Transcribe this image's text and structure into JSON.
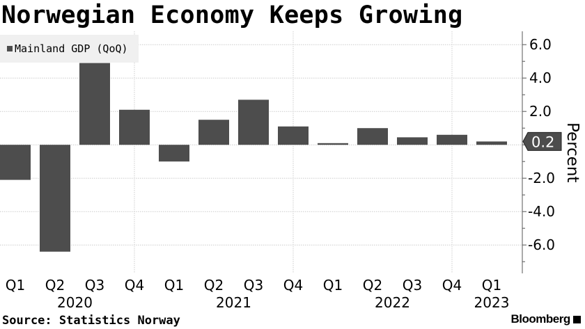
{
  "title": "Norwegian Economy Keeps Growing",
  "source": "Source: Statistics Norway",
  "logo": "Bloomberg",
  "chart_data": {
    "type": "bar",
    "categories": [
      "Q1 2020",
      "Q2 2020",
      "Q3 2020",
      "Q4 2020",
      "Q1 2021",
      "Q2 2021",
      "Q3 2021",
      "Q4 2021",
      "Q1 2022",
      "Q2 2022",
      "Q3 2022",
      "Q4 2022",
      "Q1 2023"
    ],
    "quarter_labels": [
      "Q1",
      "Q2",
      "Q3",
      "Q4",
      "Q1",
      "Q2",
      "Q3",
      "Q4",
      "Q1",
      "Q2",
      "Q3",
      "Q4",
      "Q1"
    ],
    "year_labels": [
      {
        "label": "2020",
        "index": 1.5
      },
      {
        "label": "2021",
        "index": 5.5
      },
      {
        "label": "2022",
        "index": 9.5
      },
      {
        "label": "2023",
        "index": 12
      }
    ],
    "series": [
      {
        "name": "Mainland GDP (QoQ)",
        "values": [
          -2.1,
          -6.4,
          4.9,
          2.1,
          -1.0,
          1.5,
          2.7,
          1.1,
          0.1,
          1.0,
          0.45,
          0.6,
          0.2
        ],
        "color": "#4d4d4d"
      }
    ],
    "ylabel": "Percent",
    "yticks": [
      6.0,
      4.0,
      2.0,
      -2.0,
      -4.0,
      -6.0
    ],
    "ytick_labels": [
      "6.0",
      "4.0",
      "2.0",
      "-2.0",
      "-4.0",
      "-6.0"
    ],
    "ylim": [
      -7.7,
      6.8
    ],
    "last_value_label": "0.2",
    "legend": "top-left",
    "grid": true,
    "y_axis_side": "right"
  }
}
